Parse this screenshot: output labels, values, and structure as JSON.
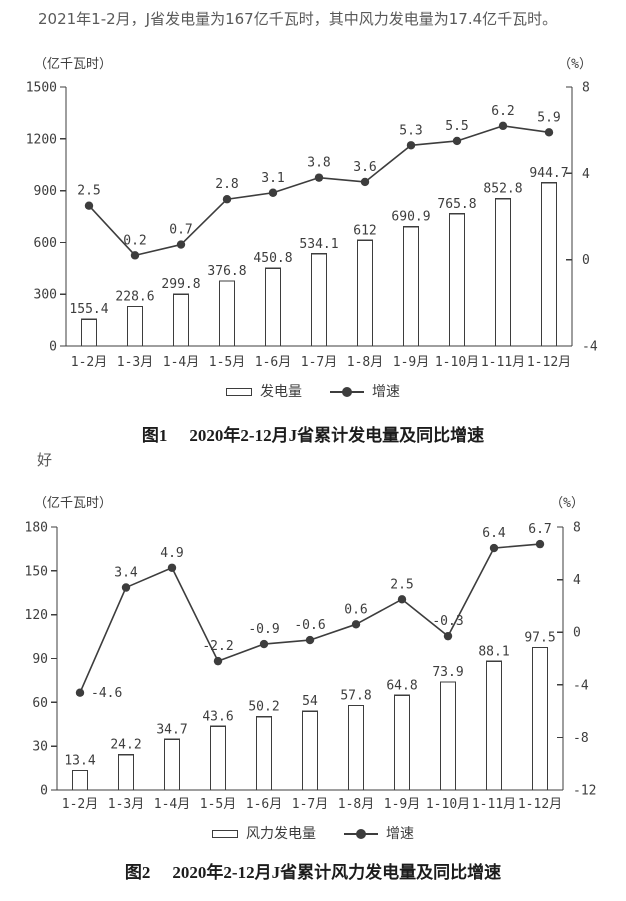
{
  "page": {
    "intro": "2021年1-2月，J省发电量为167亿千瓦时，其中风力发电量为17.4亿千瓦时。",
    "note": "好"
  },
  "colors": {
    "ink": "#3d3d3d",
    "body_text": "#595959",
    "title_text": "#1c1c1c",
    "background": "#ffffff",
    "bar_fill": "#ffffff"
  },
  "chart_data": [
    {
      "type": "bar+line",
      "figure_label": "图1",
      "title": "2020年2-12月J省累计发电量及同比增速",
      "left_axis": {
        "unit": "（亿千瓦时）",
        "min": 0,
        "max": 1500,
        "step": 300
      },
      "right_axis": {
        "unit": "（%）",
        "min": -4,
        "max": 8,
        "step": 4
      },
      "categories": [
        "1-2月",
        "1-3月",
        "1-4月",
        "1-5月",
        "1-6月",
        "1-7月",
        "1-8月",
        "1-9月",
        "1-10月",
        "1-11月",
        "1-12月"
      ],
      "series": [
        {
          "name": "发电量",
          "type": "bar",
          "axis": "left",
          "values": [
            155.4,
            228.6,
            299.8,
            376.8,
            450.8,
            534.1,
            612,
            690.9,
            765.8,
            852.8,
            944.7
          ]
        },
        {
          "name": "增速",
          "type": "line",
          "axis": "right",
          "values": [
            2.5,
            0.2,
            0.7,
            2.8,
            3.1,
            3.8,
            3.6,
            5.3,
            5.5,
            6.2,
            5.9
          ]
        }
      ],
      "legend": [
        "发电量",
        "增速"
      ],
      "grid": false,
      "legend_position": "bottom"
    },
    {
      "type": "bar+line",
      "figure_label": "图2",
      "title": "2020年2-12月J省累计风力发电量及同比增速",
      "left_axis": {
        "unit": "（亿千瓦时）",
        "min": 0,
        "max": 180,
        "step": 30
      },
      "right_axis": {
        "unit": "（%）",
        "min": -12,
        "max": 8,
        "step": 4
      },
      "categories": [
        "1-2月",
        "1-3月",
        "1-4月",
        "1-5月",
        "1-6月",
        "1-7月",
        "1-8月",
        "1-9月",
        "1-10月",
        "1-11月",
        "1-12月"
      ],
      "series": [
        {
          "name": "风力发电量",
          "type": "bar",
          "axis": "left",
          "values": [
            13.4,
            24.2,
            34.7,
            43.6,
            50.2,
            54,
            57.8,
            64.8,
            73.9,
            88.1,
            97.5
          ]
        },
        {
          "name": "增速",
          "type": "line",
          "axis": "right",
          "values": [
            -4.6,
            3.4,
            4.9,
            -2.2,
            -0.9,
            -0.6,
            0.6,
            2.5,
            -0.3,
            6.4,
            6.7
          ]
        }
      ],
      "legend": [
        "风力发电量",
        "增速"
      ],
      "grid": false,
      "legend_position": "bottom"
    }
  ]
}
